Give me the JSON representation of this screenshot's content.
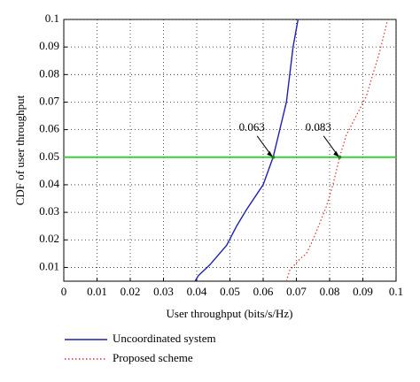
{
  "chart_data": {
    "type": "line",
    "xlabel": "User throughput (bits/s/Hz)",
    "ylabel": "CDF of user throughput",
    "xlim": [
      0,
      0.1
    ],
    "ylim": [
      0.005,
      0.1
    ],
    "xticks": [
      0,
      0.01,
      0.02,
      0.03,
      0.04,
      0.05,
      0.06,
      0.07,
      0.08,
      0.09,
      0.1
    ],
    "yticks": [
      0.01,
      0.02,
      0.03,
      0.04,
      0.05,
      0.06,
      0.07,
      0.08,
      0.09,
      0.1
    ],
    "grid": true,
    "series": [
      {
        "name": "Uncoordinated system",
        "color": "#1f1fb4",
        "style": "solid",
        "x": [
          0.0395,
          0.0405,
          0.044,
          0.049,
          0.052,
          0.055,
          0.06,
          0.063,
          0.065,
          0.067,
          0.068,
          0.069,
          0.0705
        ],
        "values": [
          0.005,
          0.007,
          0.011,
          0.018,
          0.025,
          0.031,
          0.04,
          0.05,
          0.06,
          0.07,
          0.08,
          0.09,
          0.1
        ]
      },
      {
        "name": "Proposed scheme",
        "color": "#e03030",
        "style": "dotted",
        "x": [
          0.067,
          0.068,
          0.071,
          0.073,
          0.075,
          0.077,
          0.079,
          0.081,
          0.083,
          0.085,
          0.088,
          0.091,
          0.093,
          0.095,
          0.0975
        ],
        "values": [
          0.005,
          0.009,
          0.013,
          0.015,
          0.02,
          0.026,
          0.032,
          0.04,
          0.05,
          0.058,
          0.065,
          0.072,
          0.08,
          0.088,
          0.1
        ]
      }
    ],
    "reference_line": {
      "y": 0.05,
      "color": "#3ccf3c"
    },
    "annotations": [
      {
        "label": "0.063",
        "x": 0.063,
        "y": 0.05
      },
      {
        "label": "0.083",
        "x": 0.083,
        "y": 0.05
      }
    ]
  }
}
